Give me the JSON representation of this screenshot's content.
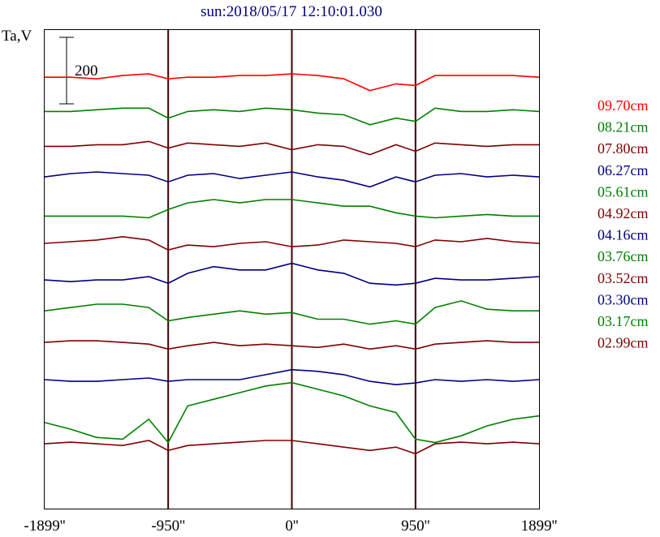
{
  "chart_data": {
    "type": "line",
    "title": "sun:2018/05/17 12:10:01.030",
    "ylabel": "Ta,V",
    "scale_bar_label": "200",
    "scale_bar_value": 200,
    "xlim": [
      -1899,
      1899
    ],
    "ylim": [
      0,
      1440
    ],
    "x_ticks": [
      {
        "value": -1899,
        "label": "-1899''"
      },
      {
        "value": -950,
        "label": "-950''"
      },
      {
        "value": 0,
        "label": "0''"
      },
      {
        "value": 950,
        "label": "950''"
      },
      {
        "value": 1899,
        "label": "1899''"
      }
    ],
    "vertical_lines": [
      -950,
      0,
      950
    ],
    "x": [
      -1899,
      -1699,
      -1499,
      -1299,
      -1099,
      -950,
      -800,
      -600,
      -400,
      -200,
      0,
      200,
      400,
      600,
      800,
      950,
      1100,
      1300,
      1500,
      1700,
      1899
    ],
    "series": [
      {
        "name": "09.70cm",
        "color": "#ff0000",
        "offset": 1298,
        "values": [
          0,
          0,
          -5,
          5,
          10,
          -5,
          0,
          0,
          5,
          5,
          10,
          5,
          -5,
          -40,
          -20,
          -25,
          5,
          5,
          5,
          5,
          0
        ]
      },
      {
        "name": "08.21cm",
        "color": "#008000",
        "offset": 1195,
        "values": [
          0,
          0,
          5,
          10,
          10,
          -20,
          0,
          5,
          0,
          10,
          5,
          -5,
          -10,
          -40,
          -20,
          -30,
          10,
          0,
          0,
          5,
          0
        ]
      },
      {
        "name": "07.80cm",
        "color": "#800000",
        "offset": 1090,
        "values": [
          0,
          0,
          5,
          5,
          15,
          -5,
          10,
          5,
          0,
          10,
          -10,
          5,
          0,
          -25,
          5,
          -15,
          10,
          5,
          0,
          5,
          5
        ]
      },
      {
        "name": "06.27cm",
        "color": "#000080",
        "offset": 998,
        "values": [
          0,
          10,
          15,
          10,
          5,
          -15,
          5,
          10,
          -5,
          5,
          15,
          0,
          -10,
          -30,
          0,
          -15,
          5,
          10,
          0,
          5,
          0
        ]
      },
      {
        "name": "05.61cm",
        "color": "#008000",
        "offset": 880,
        "values": [
          0,
          0,
          0,
          0,
          -5,
          20,
          40,
          50,
          40,
          50,
          50,
          40,
          30,
          30,
          10,
          0,
          -5,
          0,
          5,
          0,
          0
        ]
      },
      {
        "name": "04.92cm",
        "color": "#800000",
        "offset": 798,
        "values": [
          0,
          5,
          10,
          20,
          10,
          -20,
          -5,
          -10,
          0,
          5,
          -10,
          -5,
          10,
          5,
          0,
          -10,
          10,
          5,
          15,
          5,
          0
        ]
      },
      {
        "name": "04.16cm",
        "color": "#000080",
        "offset": 688,
        "values": [
          0,
          -5,
          0,
          0,
          10,
          -10,
          20,
          40,
          30,
          30,
          50,
          30,
          20,
          -10,
          -15,
          -10,
          5,
          0,
          0,
          5,
          10
        ]
      },
      {
        "name": "03.76cm",
        "color": "#008000",
        "offset": 595,
        "values": [
          0,
          10,
          20,
          20,
          10,
          -30,
          -20,
          -10,
          0,
          -10,
          -5,
          -25,
          -25,
          -40,
          -30,
          -40,
          10,
          30,
          5,
          0,
          0
        ]
      },
      {
        "name": "03.52cm",
        "color": "#800000",
        "offset": 500,
        "values": [
          0,
          5,
          5,
          0,
          -5,
          -20,
          -10,
          0,
          -10,
          -5,
          -10,
          -15,
          -5,
          -20,
          -10,
          -20,
          -5,
          0,
          5,
          0,
          0
        ]
      },
      {
        "name": "03.30cm",
        "color": "#000080",
        "offset": 388,
        "values": [
          0,
          -5,
          -5,
          0,
          5,
          -5,
          0,
          0,
          0,
          15,
          30,
          25,
          15,
          -5,
          -15,
          -10,
          0,
          -5,
          0,
          -5,
          0
        ]
      },
      {
        "name": "03.17cm",
        "color": "#008000",
        "offset": 249,
        "values": [
          10,
          -10,
          -35,
          -40,
          20,
          -50,
          60,
          80,
          100,
          120,
          130,
          110,
          90,
          60,
          40,
          -40,
          -50,
          -30,
          0,
          20,
          30
        ]
      },
      {
        "name": "02.99cm",
        "color": "#800000",
        "offset": 195,
        "values": [
          0,
          5,
          0,
          -5,
          10,
          -20,
          -5,
          0,
          5,
          10,
          10,
          0,
          -10,
          -20,
          -10,
          -30,
          0,
          5,
          0,
          5,
          0
        ]
      }
    ]
  }
}
